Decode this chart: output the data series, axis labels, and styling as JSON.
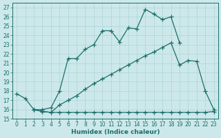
{
  "xlabel": "Humidex (Indice chaleur)",
  "xlim": [
    -0.5,
    23.5
  ],
  "ylim": [
    15,
    27.5
  ],
  "xticks": [
    0,
    1,
    2,
    3,
    4,
    5,
    6,
    7,
    8,
    9,
    10,
    11,
    12,
    13,
    14,
    15,
    16,
    17,
    18,
    19,
    20,
    21,
    22,
    23
  ],
  "yticks": [
    15,
    16,
    17,
    18,
    19,
    20,
    21,
    22,
    23,
    24,
    25,
    26,
    27
  ],
  "bg_color": "#cde8ea",
  "grid_color": "#b0d8dc",
  "line_color": "#1a6e6a",
  "line1_x": [
    0,
    1,
    2,
    3,
    4,
    5,
    6,
    7,
    8,
    9,
    10,
    11,
    12,
    13,
    14,
    15,
    16,
    17,
    18,
    19,
    20,
    21
  ],
  "line1_y": [
    17.7,
    17.2,
    16.0,
    16.0,
    16.2,
    18.0,
    21.5,
    21.5,
    22.5,
    23.0,
    24.5,
    24.5,
    23.3,
    24.8,
    24.7,
    26.8,
    26.3,
    25.7,
    26.0,
    23.2,
    null,
    null
  ],
  "line2_x": [
    2,
    3,
    4,
    5,
    6,
    7,
    8,
    9,
    10,
    11,
    12,
    13,
    14,
    15,
    16,
    17,
    18,
    19,
    20,
    21,
    22,
    23
  ],
  "line2_y": [
    16.0,
    15.8,
    15.7,
    15.7,
    15.7,
    15.7,
    15.7,
    15.7,
    15.7,
    15.7,
    15.7,
    15.7,
    15.7,
    15.7,
    15.7,
    15.7,
    15.7,
    15.7,
    15.7,
    15.7,
    15.7,
    15.8
  ],
  "line3_x": [
    2,
    3,
    4,
    5,
    6,
    7,
    8,
    9,
    10,
    11,
    12,
    13,
    14,
    15,
    16,
    17,
    18,
    19,
    20,
    21,
    22,
    23
  ],
  "line3_y": [
    16.0,
    15.8,
    15.7,
    16.5,
    17.0,
    17.5,
    18.2,
    18.8,
    19.3,
    19.8,
    20.3,
    20.8,
    21.3,
    21.8,
    22.2,
    22.7,
    23.2,
    20.8,
    21.3,
    21.2,
    18.0,
    16.0
  ]
}
